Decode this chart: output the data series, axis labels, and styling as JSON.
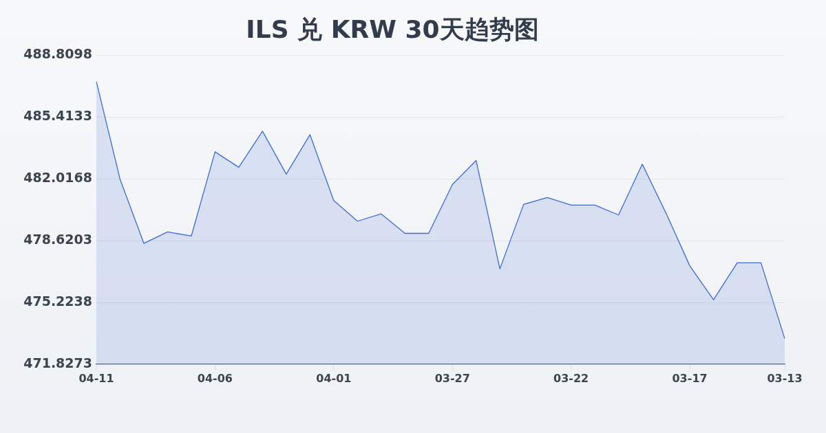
{
  "chart_data": {
    "type": "area",
    "title": "ILS 兑 KRW 30天趋势图",
    "categories": [
      "04-11",
      null,
      null,
      null,
      null,
      "04-06",
      null,
      null,
      null,
      null,
      "04-01",
      null,
      null,
      null,
      null,
      "03-27",
      null,
      null,
      null,
      null,
      "03-22",
      null,
      null,
      null,
      null,
      "03-17",
      null,
      null,
      null,
      "03-13"
    ],
    "values": [
      487.36,
      481.98,
      478.47,
      479.1,
      478.87,
      483.5,
      482.65,
      484.63,
      482.27,
      484.44,
      480.82,
      479.69,
      480.09,
      479.02,
      479.02,
      481.7,
      483.02,
      477.07,
      480.61,
      480.99,
      480.57,
      480.57,
      480.03,
      482.82,
      480.13,
      477.24,
      475.37,
      477.4,
      477.4,
      473.24
    ],
    "color": "#3d6bcf",
    "ylim": [
      471.8273,
      488.8098
    ],
    "yticks": [
      471.8273,
      475.2238,
      478.6203,
      482.0168,
      485.4133,
      488.8098
    ],
    "grid": "y"
  }
}
